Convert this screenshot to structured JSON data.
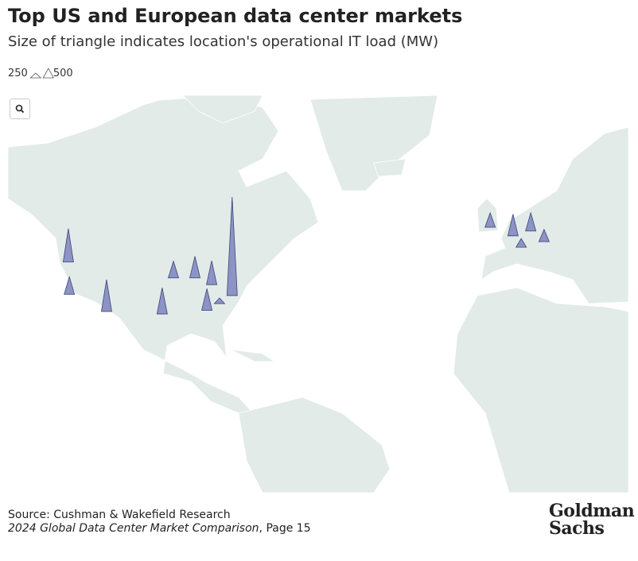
{
  "header": {
    "title": "Top US and European data center markets",
    "subtitle": "Size of triangle indicates location's operational IT load (MW)"
  },
  "map": {
    "legend": [
      250,
      500
    ],
    "markers": [
      {
        "lon": -123.8,
        "lat": 44.7,
        "value": 880
      },
      {
        "lon": -123.5,
        "lat": 37.6,
        "value": 460
      },
      {
        "lon": -112.6,
        "lat": 33.5,
        "value": 840
      },
      {
        "lon": -96.3,
        "lat": 32.9,
        "value": 690
      },
      {
        "lon": -93.0,
        "lat": 41.3,
        "value": 440
      },
      {
        "lon": -86.7,
        "lat": 41.3,
        "value": 570
      },
      {
        "lon": -81.8,
        "lat": 39.8,
        "value": 630
      },
      {
        "lon": -83.2,
        "lat": 33.8,
        "value": 570
      },
      {
        "lon": -79.5,
        "lat": 35.4,
        "value": 150
      },
      {
        "lon": -75.8,
        "lat": 37.3,
        "value": 2600
      },
      {
        "lon": -0.2,
        "lat": 51.5,
        "value": 380
      },
      {
        "lon": 6.5,
        "lat": 49.9,
        "value": 570
      },
      {
        "lon": 11.7,
        "lat": 50.8,
        "value": 480
      },
      {
        "lon": 8.9,
        "lat": 47.7,
        "value": 230
      },
      {
        "lon": 15.6,
        "lat": 48.8,
        "value": 320
      }
    ],
    "color": "#8c94c6"
  },
  "footer": {
    "source": "Source: Cushman & Wakefield Research",
    "publication": "2024 Global Data Center Market Comparison",
    "page": ", Page 15"
  },
  "logo": [
    "Goldman",
    "Sachs"
  ]
}
